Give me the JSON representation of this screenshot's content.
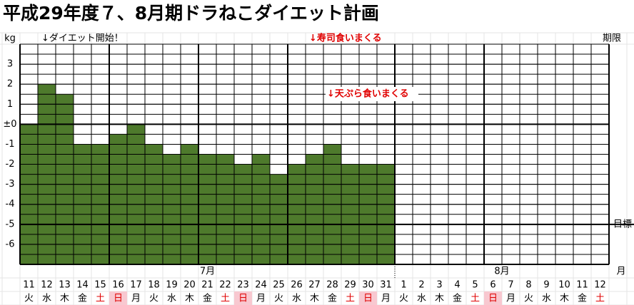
{
  "chart_data": {
    "type": "bar",
    "title": "平成29年度７、8月期ドラねこダイエット計画",
    "y_unit": "kg",
    "categories": [
      "11",
      "12",
      "13",
      "14",
      "15",
      "16",
      "17",
      "18",
      "19",
      "20",
      "21",
      "22",
      "23",
      "24",
      "25",
      "26",
      "27",
      "28",
      "29",
      "30",
      "31",
      "1",
      "2",
      "3",
      "4",
      "5",
      "6",
      "7",
      "8",
      "9",
      "10",
      "11",
      "12"
    ],
    "weekdays": [
      "火",
      "水",
      "木",
      "金",
      "土",
      "日",
      "月",
      "火",
      "水",
      "木",
      "金",
      "土",
      "日",
      "月",
      "火",
      "水",
      "木",
      "金",
      "土",
      "日",
      "月",
      "火",
      "水",
      "木",
      "金",
      "土",
      "日",
      "月",
      "火",
      "水",
      "木",
      "金",
      "土"
    ],
    "months": [
      "7月",
      "8月"
    ],
    "month_axis_label": "月",
    "values": [
      0,
      2,
      1.5,
      -1,
      -1,
      -0.5,
      0,
      -1,
      -1.5,
      -1,
      -1.5,
      -1.5,
      -2,
      -1.5,
      -2.5,
      -2,
      -1.5,
      -1,
      -2,
      -2,
      -2,
      null,
      null,
      null,
      null,
      null,
      null,
      null,
      null,
      null,
      null,
      null,
      null
    ],
    "color": "#4e7a2c",
    "ylim": [
      -7,
      4
    ],
    "yticks": [
      3,
      2,
      1,
      {
        "value": 0,
        "label": "±0"
      },
      -1,
      -2,
      -3,
      -4,
      -5,
      -6
    ],
    "target": {
      "value": -5,
      "label": "目標"
    },
    "deadline_label": "期限",
    "annotations": [
      {
        "text": "↓ダイエット開始！",
        "category_index": 1,
        "color": "#000000"
      },
      {
        "text": "↓寿司食いまくる",
        "category_index": 16,
        "color": "#e00000"
      },
      {
        "text": "↓天ぷら食いまくる",
        "category_index": 17,
        "color": "#e00000"
      }
    ],
    "weekend_color": "#e00000",
    "sunday_background": "#f8c8d0",
    "grid": true
  }
}
